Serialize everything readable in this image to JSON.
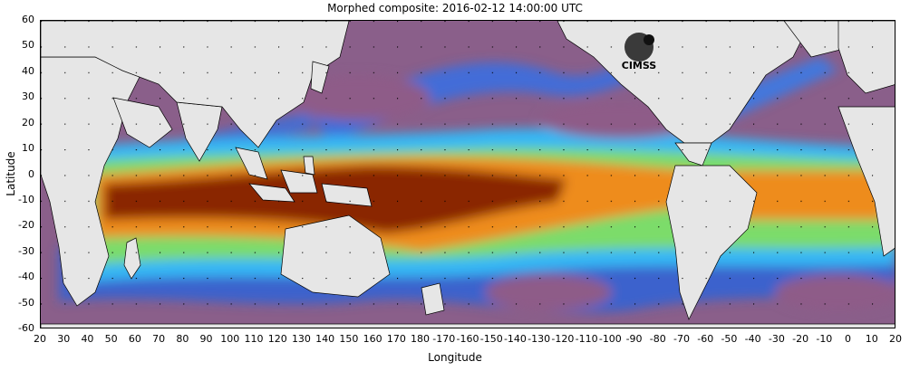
{
  "title": "Morphed composite: 2016-02-12 14:00:00 UTC",
  "x_axis_label": "Longitude",
  "y_axis_label": "Latitude",
  "x_ticks": [
    "20",
    "30",
    "40",
    "50",
    "60",
    "70",
    "80",
    "90",
    "100",
    "110",
    "120",
    "130",
    "140",
    "150",
    "160",
    "170",
    "180",
    "-170",
    "-160",
    "-150",
    "-140",
    "-130",
    "-120",
    "-110",
    "-100",
    "-90",
    "-80",
    "-70",
    "-60",
    "-50",
    "-40",
    "-30",
    "-20",
    "-10",
    "0",
    "10",
    "20"
  ],
  "y_ticks": [
    "60",
    "50",
    "40",
    "30",
    "20",
    "10",
    "0",
    "-10",
    "-20",
    "-30",
    "-40",
    "-50",
    "-60"
  ],
  "logo_text": "CIMSS",
  "colors": {
    "land": "#e6e6e6",
    "dry": "#8e5b88",
    "low": "#2f5ce0",
    "mid_low": "#2fb7ff",
    "mid": "#7ce36a",
    "mid_high": "#f0a020",
    "high": "#d5680e",
    "very_high": "#7a1c04"
  }
}
